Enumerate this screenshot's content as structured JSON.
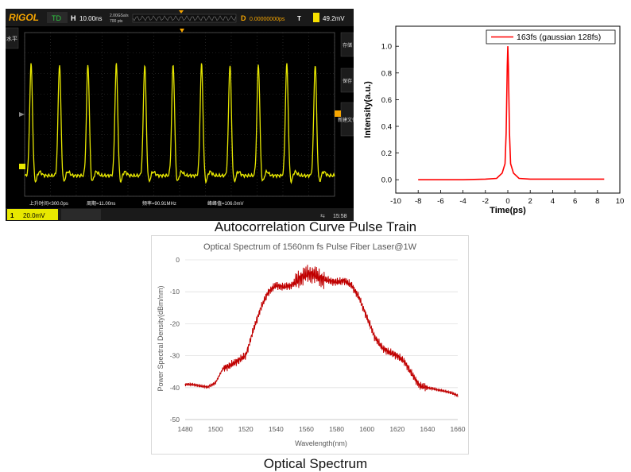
{
  "scope": {
    "brand": "RIGOL",
    "trigger_state": "TD",
    "h_label": "H",
    "timebase": "10.00ns",
    "sample_rate": "2.00GSa/s",
    "memory_depth": "700 pts",
    "d_label": "D",
    "delay": "0.00000000ps",
    "trigger_label": "T",
    "trigger_level": "49.2mV",
    "ch1_scale": "20.0mV",
    "right_menu": [
      "存储",
      "保存",
      "新建文件"
    ],
    "left_menu": "水平",
    "measurements": [
      "上升时间<300.0ps",
      "周期=11.00ns",
      "频率=90.91MHz",
      "峰峰值=106.0mV"
    ],
    "clock": "15:58",
    "colors": {
      "trace": "#e8e800",
      "accent": "#f7a600",
      "bg": "#000000"
    }
  },
  "autocorr": {
    "legend": "163fs (gaussian 128fs)",
    "xlabel": "Time(ps)",
    "ylabel": "Intensity(a.u.)",
    "caption": "Autocorrelation Curve Pulse Train"
  },
  "spectrum": {
    "title": "Optical Spectrum of 1560nm fs Pulse Fiber Laser@1W",
    "xlabel": "Wavelength(nm)",
    "ylabel": "Power Spectral Density(dBm/nm)",
    "caption": "Optical Spectrum"
  },
  "chart_data": [
    {
      "type": "line",
      "title": "",
      "xlabel": "",
      "ylabel": "",
      "xlim": [
        0,
        100
      ],
      "ylim": [
        0,
        106
      ],
      "series": [
        {
          "values_pulse_times_ns": [
            11,
            22,
            33,
            44,
            55,
            66,
            77,
            88,
            99
          ]
        }
      ],
      "note_visible": "oscilloscope pulse train"
    },
    {
      "type": "line",
      "title": "",
      "xlabel": "Time(ps)",
      "ylabel": "Intensity(a.u.)",
      "xlim": [
        -10,
        10
      ],
      "ylim": [
        -0.1,
        1.15
      ],
      "xticks": [
        -10,
        -8,
        -6,
        -4,
        -2,
        0,
        2,
        4,
        6,
        8,
        10
      ],
      "yticks": [
        0.0,
        0.2,
        0.4,
        0.6,
        0.8,
        1.0
      ],
      "legend": "top-right",
      "series": [
        {
          "name": "163fs (gaussian 128fs)",
          "color": "#ff0000",
          "x": [
            -8,
            -6,
            -4,
            -2,
            -1,
            -0.5,
            -0.25,
            -0.15,
            -0.1,
            -0.05,
            0,
            0.05,
            0.1,
            0.15,
            0.25,
            0.5,
            1,
            2,
            4,
            6,
            8.6
          ],
          "y": [
            0.0,
            0.0,
            0.0,
            0.005,
            0.01,
            0.05,
            0.12,
            0.35,
            0.6,
            0.85,
            1.0,
            0.85,
            0.6,
            0.35,
            0.12,
            0.05,
            0.01,
            0.005,
            0.005,
            0.005,
            0.005
          ]
        }
      ]
    },
    {
      "type": "line",
      "title": "Optical Spectrum of 1560nm fs Pulse Fiber Laser@1W",
      "xlabel": "Wavelength(nm)",
      "ylabel": "Power Spectral Density(dBm/nm)",
      "xlim": [
        1480,
        1660
      ],
      "ylim": [
        -50,
        0
      ],
      "xticks": [
        1480,
        1500,
        1520,
        1540,
        1560,
        1580,
        1600,
        1620,
        1640,
        1660
      ],
      "yticks": [
        0,
        -10,
        -20,
        -30,
        -40,
        -50
      ],
      "series": [
        {
          "color": "#c00000",
          "x": [
            1480,
            1485,
            1490,
            1495,
            1500,
            1505,
            1510,
            1515,
            1520,
            1525,
            1530,
            1535,
            1540,
            1545,
            1550,
            1555,
            1560,
            1565,
            1570,
            1575,
            1580,
            1585,
            1590,
            1595,
            1600,
            1605,
            1610,
            1615,
            1620,
            1625,
            1630,
            1635,
            1640,
            1645,
            1650,
            1655,
            1660
          ],
          "y": [
            -39,
            -39,
            -39.5,
            -39.8,
            -38.5,
            -34,
            -33,
            -31.5,
            -30,
            -22,
            -15,
            -10,
            -8,
            -8.5,
            -8,
            -6,
            -4.5,
            -4.5,
            -6,
            -6.5,
            -7,
            -6.5,
            -8,
            -12,
            -18,
            -24,
            -27.5,
            -29,
            -30,
            -32,
            -36,
            -39.5,
            -40,
            -40.5,
            -41,
            -41.5,
            -42.5
          ]
        }
      ]
    }
  ]
}
